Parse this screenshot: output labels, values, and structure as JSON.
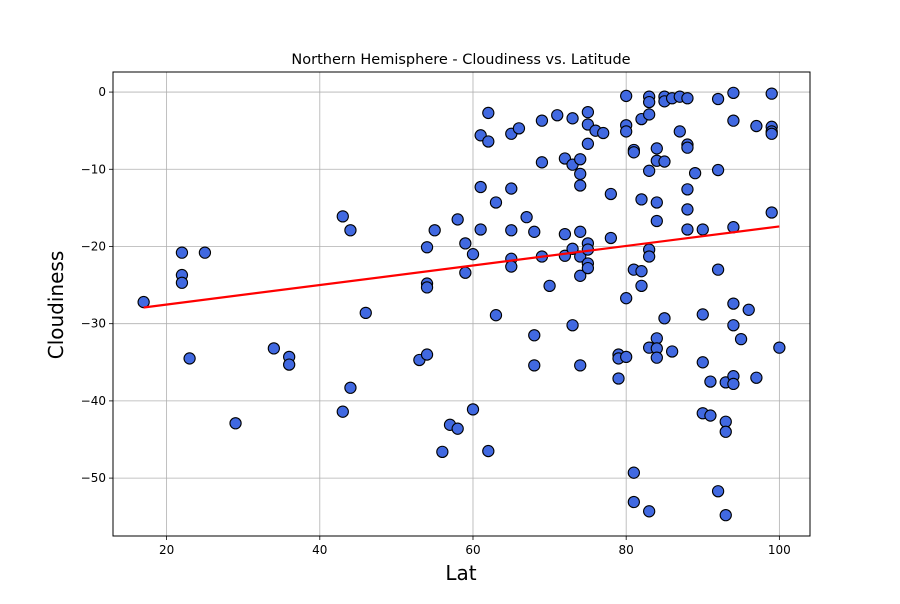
{
  "chart_data": {
    "type": "scatter",
    "title": "Northern Hemisphere - Cloudiness vs. Latitude",
    "xlabel": "Lat",
    "ylabel": "Cloudiness",
    "xlim": [
      13,
      104
    ],
    "ylim": [
      -57.5,
      2.6
    ],
    "xticks": [
      20,
      40,
      60,
      80,
      100
    ],
    "yticks": [
      0,
      -10,
      -20,
      -30,
      -40,
      -50
    ],
    "grid": true,
    "legend": "none",
    "colors": {
      "marker_fill": "#4169e1",
      "marker_edge": "#000000",
      "regression_line": "#ff0000",
      "grid": "#b0b0b0"
    },
    "regression_line": {
      "x": [
        17,
        100
      ],
      "y": [
        -27.9,
        -17.4
      ]
    },
    "points": [
      [
        17,
        -27.2
      ],
      [
        22,
        -20.8
      ],
      [
        22,
        -23.7
      ],
      [
        22,
        -24.7
      ],
      [
        23,
        -34.5
      ],
      [
        25,
        -20.8
      ],
      [
        29,
        -42.9
      ],
      [
        34,
        -33.2
      ],
      [
        36,
        -34.3
      ],
      [
        36,
        -35.3
      ],
      [
        43,
        -16.1
      ],
      [
        43,
        -41.4
      ],
      [
        44,
        -17.9
      ],
      [
        44,
        -38.3
      ],
      [
        46,
        -28.6
      ],
      [
        53,
        -34.7
      ],
      [
        54,
        -20.1
      ],
      [
        54,
        -24.8
      ],
      [
        54,
        -25.3
      ],
      [
        54,
        -34.0
      ],
      [
        55,
        -17.9
      ],
      [
        56,
        -46.6
      ],
      [
        57,
        -43.1
      ],
      [
        58,
        -16.5
      ],
      [
        58,
        -43.6
      ],
      [
        59,
        -19.6
      ],
      [
        59,
        -23.4
      ],
      [
        60,
        -21.0
      ],
      [
        60,
        -41.1
      ],
      [
        61,
        -5.6
      ],
      [
        61,
        -12.3
      ],
      [
        61,
        -17.8
      ],
      [
        62,
        -2.7
      ],
      [
        62,
        -6.4
      ],
      [
        62,
        -46.5
      ],
      [
        63,
        -14.3
      ],
      [
        63,
        -28.9
      ],
      [
        65,
        -5.4
      ],
      [
        65,
        -12.5
      ],
      [
        65,
        -17.9
      ],
      [
        65,
        -21.6
      ],
      [
        65,
        -22.6
      ],
      [
        66,
        -4.7
      ],
      [
        67,
        -16.2
      ],
      [
        68,
        -18.1
      ],
      [
        68,
        -31.5
      ],
      [
        68,
        -35.4
      ],
      [
        69,
        -3.7
      ],
      [
        69,
        -9.1
      ],
      [
        69,
        -21.3
      ],
      [
        70,
        -25.1
      ],
      [
        71,
        -3.0
      ],
      [
        72,
        -8.6
      ],
      [
        72,
        -18.4
      ],
      [
        72,
        -21.2
      ],
      [
        73,
        -3.4
      ],
      [
        73,
        -9.4
      ],
      [
        73,
        -20.3
      ],
      [
        73,
        -30.2
      ],
      [
        74,
        -8.7
      ],
      [
        74,
        -10.6
      ],
      [
        74,
        -12.1
      ],
      [
        74,
        -18.1
      ],
      [
        74,
        -21.3
      ],
      [
        74,
        -23.8
      ],
      [
        74,
        -35.4
      ],
      [
        75,
        -2.6
      ],
      [
        75,
        -4.2
      ],
      [
        75,
        -6.7
      ],
      [
        75,
        -19.6
      ],
      [
        75,
        -20.4
      ],
      [
        75,
        -22.2
      ],
      [
        75,
        -22.8
      ],
      [
        76,
        -5.0
      ],
      [
        77,
        -5.3
      ],
      [
        78,
        -13.2
      ],
      [
        78,
        -18.9
      ],
      [
        79,
        -34.0
      ],
      [
        79,
        -34.5
      ],
      [
        79,
        -37.1
      ],
      [
        80,
        -0.5
      ],
      [
        80,
        -4.3
      ],
      [
        80,
        -5.1
      ],
      [
        80,
        -26.7
      ],
      [
        80,
        -34.3
      ],
      [
        81,
        -7.5
      ],
      [
        81,
        -7.8
      ],
      [
        81,
        -23.0
      ],
      [
        81,
        -49.3
      ],
      [
        81,
        -53.1
      ],
      [
        82,
        -3.5
      ],
      [
        82,
        -13.9
      ],
      [
        82,
        -23.2
      ],
      [
        82,
        -25.1
      ],
      [
        83,
        -0.6
      ],
      [
        83,
        -1.3
      ],
      [
        83,
        -2.9
      ],
      [
        83,
        -10.2
      ],
      [
        83,
        -20.4
      ],
      [
        83,
        -21.3
      ],
      [
        83,
        -33.1
      ],
      [
        83,
        -54.3
      ],
      [
        84,
        -7.3
      ],
      [
        84,
        -8.9
      ],
      [
        84,
        -14.3
      ],
      [
        84,
        -16.7
      ],
      [
        84,
        -31.9
      ],
      [
        84,
        -33.2
      ],
      [
        84,
        -34.4
      ],
      [
        85,
        -0.6
      ],
      [
        85,
        -1.2
      ],
      [
        85,
        -9.0
      ],
      [
        85,
        -29.3
      ],
      [
        86,
        -0.8
      ],
      [
        86,
        -33.6
      ],
      [
        87,
        -0.6
      ],
      [
        87,
        -5.1
      ],
      [
        88,
        -0.8
      ],
      [
        88,
        -6.8
      ],
      [
        88,
        -7.2
      ],
      [
        88,
        -12.6
      ],
      [
        88,
        -15.2
      ],
      [
        88,
        -17.8
      ],
      [
        89,
        -10.5
      ],
      [
        90,
        -17.8
      ],
      [
        90,
        -28.8
      ],
      [
        90,
        -35.0
      ],
      [
        90,
        -41.6
      ],
      [
        91,
        -37.5
      ],
      [
        91,
        -41.9
      ],
      [
        92,
        -0.9
      ],
      [
        92,
        -10.1
      ],
      [
        92,
        -23.0
      ],
      [
        92,
        -51.7
      ],
      [
        93,
        -37.6
      ],
      [
        93,
        -42.7
      ],
      [
        93,
        -44.0
      ],
      [
        93,
        -54.8
      ],
      [
        94,
        -0.1
      ],
      [
        94,
        -3.7
      ],
      [
        94,
        -17.5
      ],
      [
        94,
        -27.4
      ],
      [
        94,
        -30.2
      ],
      [
        94,
        -36.8
      ],
      [
        94,
        -37.8
      ],
      [
        95,
        -32.0
      ],
      [
        96,
        -28.2
      ],
      [
        97,
        -4.4
      ],
      [
        97,
        -37.0
      ],
      [
        99,
        -0.2
      ],
      [
        99,
        -4.5
      ],
      [
        99,
        -5.1
      ],
      [
        99,
        -5.4
      ],
      [
        99,
        -15.6
      ],
      [
        100,
        -33.1
      ]
    ]
  }
}
